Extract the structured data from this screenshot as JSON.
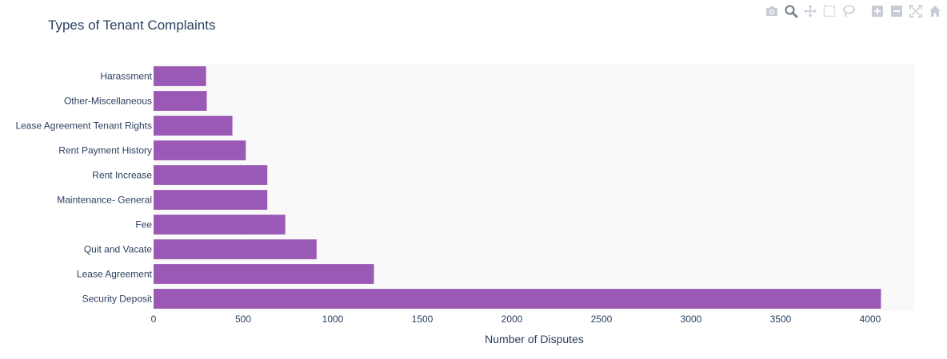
{
  "chart_data": {
    "type": "bar",
    "orientation": "horizontal",
    "title": "Types of Tenant Complaints",
    "xlabel": "Number of Disputes",
    "ylabel": "",
    "categories": [
      "Security Deposit",
      "Lease Agreement",
      "Quit and Vacate",
      "Fee",
      "Maintenance- General",
      "Rent Increase",
      "Rent Payment History",
      "Lease Agreement Tenant Rights",
      "Other-Miscellaneous",
      "Harassment"
    ],
    "values": [
      4060,
      1230,
      910,
      735,
      635,
      635,
      515,
      440,
      297,
      293
    ],
    "xlim": [
      0,
      4250
    ],
    "xticks": [
      0,
      500,
      1000,
      1500,
      2000,
      2500,
      3000,
      3500,
      4000
    ],
    "grid": true,
    "bar_color": "#9b59b6",
    "plot_bg": "#f9f9f9"
  },
  "modebar": {
    "icons": [
      "camera-icon",
      "zoom-icon",
      "pan-icon",
      "box-select-icon",
      "lasso-icon",
      "zoom-in-icon",
      "zoom-out-icon",
      "autoscale-icon",
      "home-icon"
    ]
  }
}
